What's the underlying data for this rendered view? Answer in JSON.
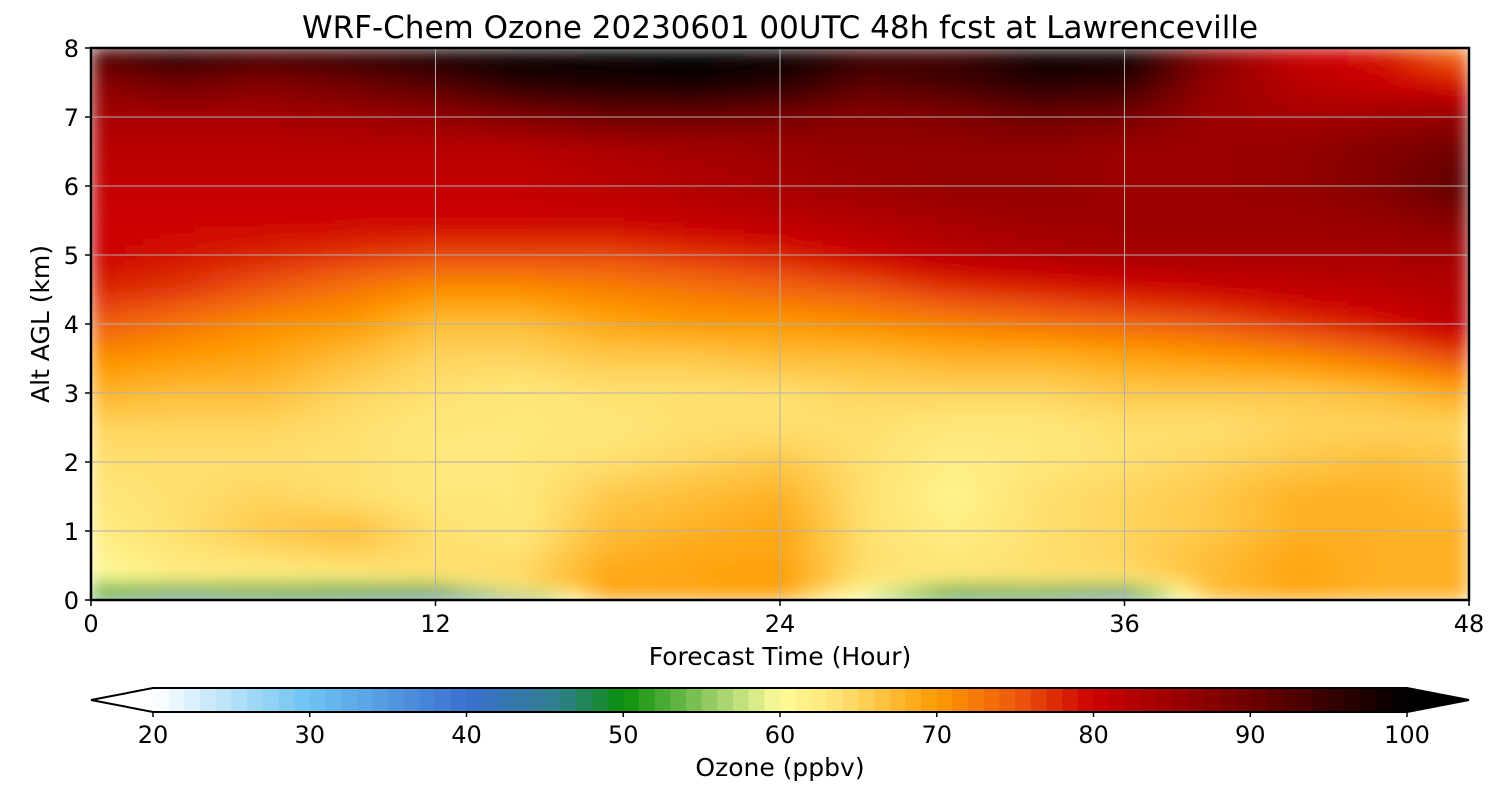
{
  "chart_data": {
    "type": "heatmap",
    "title": "WRF-Chem Ozone  20230601 00UTC 48h fcst at Lawrenceville",
    "xlabel": "Forecast Time (Hour)",
    "ylabel": "Alt AGL (km)",
    "xlim": [
      0,
      48
    ],
    "ylim": [
      0,
      8
    ],
    "xticks": [
      0,
      12,
      24,
      36,
      48
    ],
    "yticks": [
      0,
      1,
      2,
      3,
      4,
      5,
      6,
      7,
      8
    ],
    "grid": true,
    "colorbar": {
      "label": "Ozone  (ppbv)",
      "min": 20,
      "max": 100,
      "ticks": [
        20,
        30,
        40,
        50,
        60,
        70,
        80,
        90,
        100
      ],
      "extend": "both",
      "orientation": "horizontal",
      "stops": [
        {
          "v": 20,
          "c": "#ffffff"
        },
        {
          "v": 30,
          "c": "#6cc3f2"
        },
        {
          "v": 40,
          "c": "#3a6fcf"
        },
        {
          "v": 46,
          "c": "#2f7f8a"
        },
        {
          "v": 50,
          "c": "#0a8f0a"
        },
        {
          "v": 56,
          "c": "#9ed06a"
        },
        {
          "v": 60,
          "c": "#fffb9a"
        },
        {
          "v": 64,
          "c": "#ffe070"
        },
        {
          "v": 70,
          "c": "#ff9a00"
        },
        {
          "v": 75,
          "c": "#ee5a0c"
        },
        {
          "v": 80,
          "c": "#cc0000"
        },
        {
          "v": 90,
          "c": "#6e0000"
        },
        {
          "v": 100,
          "c": "#000000"
        }
      ]
    },
    "hours": [
      0,
      3,
      6,
      9,
      12,
      15,
      18,
      21,
      24,
      27,
      30,
      33,
      36,
      39,
      42,
      45,
      48
    ],
    "altitudes_km": [
      0,
      0.1,
      0.3,
      0.6,
      1,
      1.5,
      2,
      2.5,
      3,
      3.5,
      4,
      4.5,
      5,
      5.5,
      6,
      6.5,
      7,
      7.5,
      8
    ],
    "values_ppbv": [
      [
        48,
        42,
        46,
        45,
        42,
        40,
        69,
        69,
        69,
        58,
        46,
        46,
        40,
        67,
        69,
        68,
        68
      ],
      [
        52,
        50,
        50,
        49,
        48,
        60,
        69,
        69,
        69,
        60,
        50,
        50,
        49,
        67,
        69,
        68,
        68
      ],
      [
        59,
        62,
        62,
        62,
        64,
        65,
        69,
        69,
        70,
        64,
        63,
        64,
        64,
        67,
        69,
        68,
        68
      ],
      [
        61,
        63,
        64,
        65,
        64,
        64,
        68,
        69,
        69,
        64,
        63,
        64,
        65,
        67,
        69,
        68,
        68
      ],
      [
        62,
        64,
        66,
        67,
        64,
        63,
        67,
        68,
        69,
        64,
        62,
        64,
        65,
        66,
        68,
        68,
        68
      ],
      [
        63,
        64,
        65,
        64,
        63,
        63,
        66,
        67,
        68,
        64,
        61,
        64,
        65,
        66,
        68,
        68,
        67
      ],
      [
        64,
        64,
        64,
        64,
        63,
        63,
        64,
        65,
        66,
        64,
        62,
        63,
        64,
        65,
        66,
        67,
        66
      ],
      [
        65,
        65,
        65,
        64,
        63,
        63,
        63,
        64,
        64,
        64,
        63,
        63,
        64,
        64,
        65,
        65,
        65
      ],
      [
        68,
        67,
        67,
        65,
        64,
        63,
        64,
        64,
        64,
        65,
        65,
        65,
        66,
        66,
        66,
        67,
        69
      ],
      [
        71,
        70,
        69,
        67,
        65,
        65,
        66,
        66,
        67,
        67,
        68,
        68,
        69,
        70,
        71,
        73,
        76
      ],
      [
        75,
        73,
        71,
        70,
        67,
        67,
        69,
        70,
        70,
        71,
        72,
        73,
        74,
        75,
        77,
        79,
        82
      ],
      [
        78,
        77,
        75,
        73,
        71,
        71,
        72,
        73,
        74,
        75,
        77,
        78,
        79,
        80,
        81,
        82,
        83
      ],
      [
        80,
        79,
        78,
        77,
        76,
        76,
        76,
        77,
        78,
        80,
        82,
        83,
        84,
        84,
        84,
        84,
        84
      ],
      [
        80,
        80,
        80,
        80,
        80,
        80,
        80,
        81,
        82,
        83,
        84,
        85,
        85,
        85,
        85,
        86,
        88
      ],
      [
        81,
        81,
        81,
        81,
        81,
        81,
        82,
        83,
        84,
        85,
        86,
        86,
        85,
        85,
        86,
        88,
        92
      ],
      [
        82,
        82,
        82,
        82,
        82,
        82,
        83,
        84,
        85,
        86,
        86,
        86,
        85,
        85,
        86,
        88,
        90
      ],
      [
        84,
        84,
        84,
        85,
        86,
        88,
        90,
        90,
        89,
        87,
        88,
        90,
        89,
        85,
        84,
        85,
        86
      ],
      [
        87,
        90,
        88,
        90,
        93,
        97,
        98,
        99,
        97,
        92,
        94,
        97,
        96,
        86,
        82,
        80,
        78
      ],
      [
        94,
        98,
        96,
        97,
        99,
        100,
        100,
        100,
        100,
        96,
        95,
        99,
        100,
        88,
        80,
        78,
        72
      ]
    ]
  }
}
